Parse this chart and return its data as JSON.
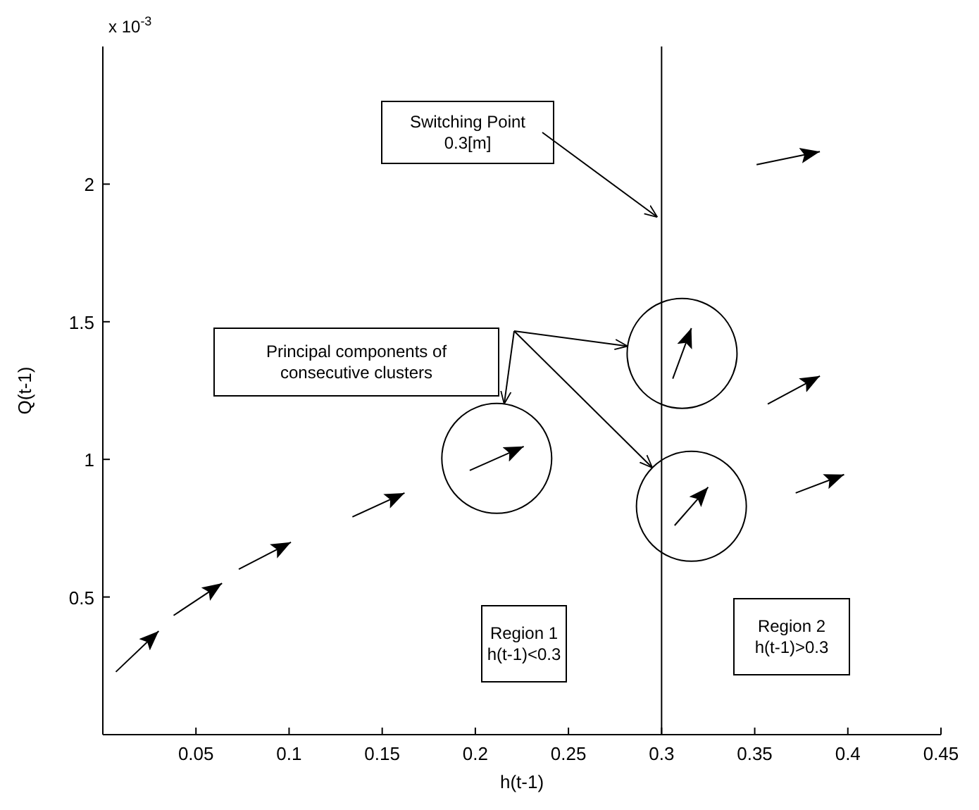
{
  "chart_data": {
    "type": "line",
    "xlabel": "h(t-1)",
    "ylabel": "Q(t-1)",
    "xlim": [
      0,
      0.45
    ],
    "xticks": [
      0.05,
      0.1,
      0.15,
      0.2,
      0.25,
      0.3,
      0.35,
      0.4,
      0.45
    ],
    "ylim": [
      0,
      2.5
    ],
    "yticks": [
      0.5,
      1,
      1.5,
      2
    ],
    "grid": false,
    "marker": "none",
    "line_style": "solid",
    "series": [
      {
        "color": "#000000",
        "x": [
          0.007,
          0.03
        ],
        "values": [
          0.228,
          0.376
        ]
      },
      {
        "color": "#000000",
        "x": [
          0.038,
          0.064
        ],
        "values": [
          0.433,
          0.55
        ]
      },
      {
        "color": "#000000",
        "x": [
          0.073,
          0.101
        ],
        "values": [
          0.601,
          0.699
        ]
      },
      {
        "color": "#000000",
        "x": [
          0.134,
          0.162
        ],
        "values": [
          0.791,
          0.878
        ]
      },
      {
        "color": "#000000",
        "x": [
          0.197,
          0.226
        ],
        "values": [
          0.96,
          1.047
        ]
      },
      {
        "color": "#000000",
        "x": [
          0.306,
          0.316
        ],
        "values": [
          1.293,
          1.477
        ]
      },
      {
        "color": "#000000",
        "x": [
          0.307,
          0.325
        ],
        "values": [
          0.76,
          0.899
        ]
      },
      {
        "color": "#000000",
        "x": [
          0.357,
          0.385
        ],
        "values": [
          1.201,
          1.303
        ]
      },
      {
        "color": "#000000",
        "x": [
          0.372,
          0.398
        ],
        "values": [
          0.878,
          0.945
        ]
      },
      {
        "color": "#000000",
        "x": [
          0.351,
          0.385
        ],
        "values": [
          2.071,
          2.118
        ]
      }
    ],
    "ref_lines": [
      {
        "axis": "x",
        "value": 0.3,
        "color": "#000000"
      }
    ],
    "annotations": [
      "x 10$^{-3}$",
      {
        "text": "Switching Point\n0.3[m]",
        "x": 0.3,
        "y": 1.88
      },
      "Principal components of\nconsecutive clusters",
      "Region 1\nh(t-1)<0.3",
      "Region 2\nh(t-1)>0.3"
    ]
  }
}
